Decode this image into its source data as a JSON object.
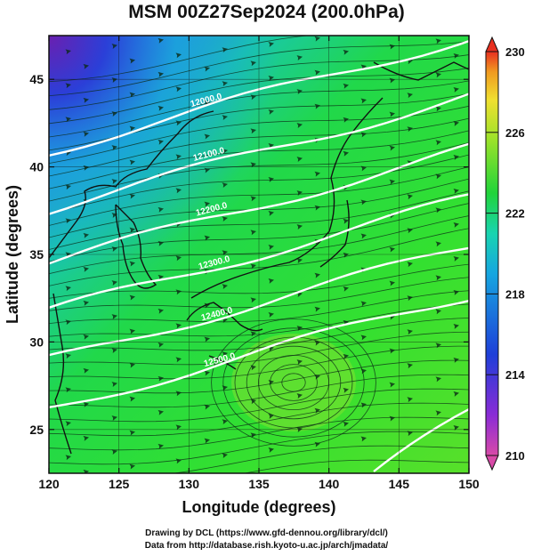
{
  "title": "MSM 00Z27Sep2024 (200.0hPa)",
  "x_axis": {
    "label": "Longitude (degrees)",
    "ticks": [
      "120",
      "125",
      "130",
      "135",
      "140",
      "145",
      "150"
    ]
  },
  "y_axis": {
    "label": "Latitude  (degrees)",
    "ticks": [
      "25",
      "30",
      "35",
      "40",
      "45"
    ]
  },
  "colorbar": {
    "ticks": [
      "210",
      "214",
      "218",
      "222",
      "226",
      "230"
    ],
    "colors": [
      "#d84aa8",
      "#8a2bd6",
      "#1e3fd8",
      "#16a6e0",
      "#19d4b0",
      "#21d43a",
      "#9ae22a",
      "#f0e030",
      "#f09a20",
      "#e83020"
    ]
  },
  "contour_labels": [
    "12000.0",
    "12100.0",
    "12200.0",
    "12300.0",
    "12400.0",
    "12500.0"
  ],
  "credits": {
    "line1": "Drawing by DCL (https://www.gfd-dennou.org/library/dcl/)",
    "line2": "Data from http://database.rish.kyoto-u.ac.jp/arch/jmadata/"
  }
}
